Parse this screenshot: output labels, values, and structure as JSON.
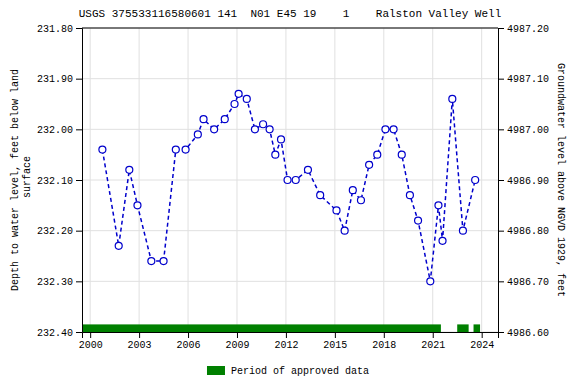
{
  "chart_data": {
    "type": "line",
    "title": "USGS 375533116580601 141  N01 E45 19    1    Ralston Valley Well",
    "ylabel": "Depth to water level, feet below land\n surface",
    "y2label": "Groundwater level above NGVD 1929, feet",
    "x": [
      2000.75,
      2001.75,
      2002.4,
      2002.9,
      2003.75,
      2004.5,
      2005.25,
      2005.85,
      2006.6,
      2006.95,
      2007.6,
      2008.25,
      2008.85,
      2009.1,
      2009.6,
      2010.1,
      2010.6,
      2011.0,
      2011.35,
      2011.7,
      2012.1,
      2012.6,
      2013.35,
      2014.1,
      2015.1,
      2015.6,
      2016.1,
      2016.6,
      2017.1,
      2017.6,
      2018.1,
      2018.6,
      2019.1,
      2019.6,
      2020.1,
      2020.85,
      2021.35,
      2021.6,
      2022.2,
      2022.85,
      2023.6
    ],
    "series": [
      {
        "type": "line",
        "color": "#0000cc",
        "line_style": "dashed",
        "marker": "circle",
        "values": [
          232.04,
          232.23,
          232.08,
          232.15,
          232.26,
          232.26,
          232.04,
          232.04,
          232.01,
          231.98,
          232.0,
          231.98,
          231.95,
          231.93,
          231.94,
          232.0,
          231.99,
          232.0,
          232.05,
          232.02,
          232.1,
          232.1,
          232.08,
          232.13,
          232.16,
          232.2,
          232.12,
          232.14,
          232.07,
          232.05,
          232.0,
          232.0,
          232.05,
          232.13,
          232.18,
          232.3,
          232.15,
          232.22,
          231.94,
          232.2,
          232.1
        ]
      },
      {
        "type": "span",
        "name": "Period of approved data",
        "color": "#008000",
        "x_start": [
          1999.5,
          2022.5,
          2023.5
        ],
        "x_end": [
          2021.5,
          2023.2,
          2023.9
        ],
        "y_start": [
          232.385,
          232.385,
          232.385
        ],
        "y_end": [
          232.4,
          232.4,
          232.4
        ]
      }
    ],
    "xlim": [
      1999.5,
      2025
    ],
    "xticks": [
      2000,
      2003,
      2006,
      2009,
      2012,
      2015,
      2018,
      2021,
      2024
    ],
    "ylim": [
      232.4,
      231.8
    ],
    "yticks": [
      {
        "value": 231.8,
        "label": "231.80"
      },
      {
        "value": 231.9,
        "label": "231.90"
      },
      {
        "value": 232.0,
        "label": "232.00"
      },
      {
        "value": 232.1,
        "label": "232.10"
      },
      {
        "value": 232.2,
        "label": "232.20"
      },
      {
        "value": 232.3,
        "label": "232.30"
      },
      {
        "value": 232.4,
        "label": "232.40"
      }
    ],
    "y2lim": [
      4986.6,
      4987.2
    ],
    "y2ticks": [
      {
        "value": 4986.6,
        "label": "4986.60"
      },
      {
        "value": 4986.7,
        "label": "4986.70"
      },
      {
        "value": 4986.8,
        "label": "4986.80"
      },
      {
        "value": 4986.9,
        "label": "4986.90"
      },
      {
        "value": 4987.0,
        "label": "4987.00"
      },
      {
        "value": 4987.1,
        "label": "4987.10"
      },
      {
        "value": 4987.2,
        "label": "4987.20"
      }
    ],
    "grid": true,
    "legend": "bottom"
  }
}
